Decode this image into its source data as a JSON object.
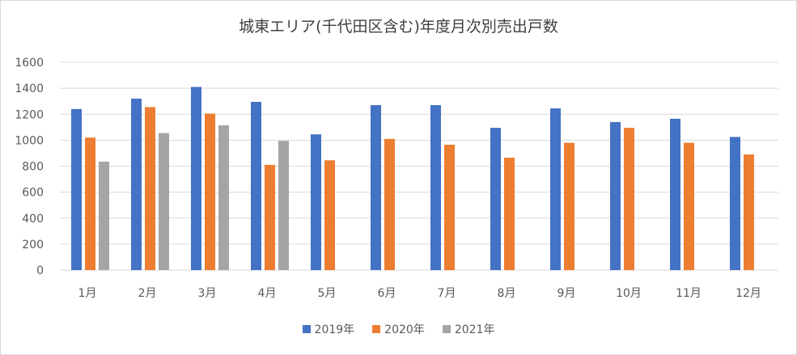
{
  "chart_data": {
    "type": "bar",
    "title": "城東エリア(千代田区含む)年度月次別売出戸数",
    "xlabel": "",
    "ylabel": "",
    "ylim": [
      0,
      1600
    ],
    "yticks": [
      0,
      200,
      400,
      600,
      800,
      1000,
      1200,
      1400,
      1600
    ],
    "grid": true,
    "legend_position": "bottom",
    "categories": [
      "1月",
      "2月",
      "3月",
      "4月",
      "5月",
      "6月",
      "7月",
      "8月",
      "9月",
      "10月",
      "11月",
      "12月"
    ],
    "series": [
      {
        "name": "2019年",
        "color": "#4472c4",
        "values": [
          1240,
          1320,
          1410,
          1295,
          1045,
          1270,
          1270,
          1095,
          1245,
          1140,
          1165,
          1025
        ]
      },
      {
        "name": "2020年",
        "color": "#ed7d31",
        "values": [
          1020,
          1255,
          1205,
          810,
          845,
          1010,
          965,
          865,
          980,
          1095,
          980,
          890
        ]
      },
      {
        "name": "2021年",
        "color": "#a5a5a5",
        "values": [
          835,
          1055,
          1115,
          995,
          null,
          null,
          null,
          null,
          null,
          null,
          null,
          null
        ]
      }
    ]
  }
}
